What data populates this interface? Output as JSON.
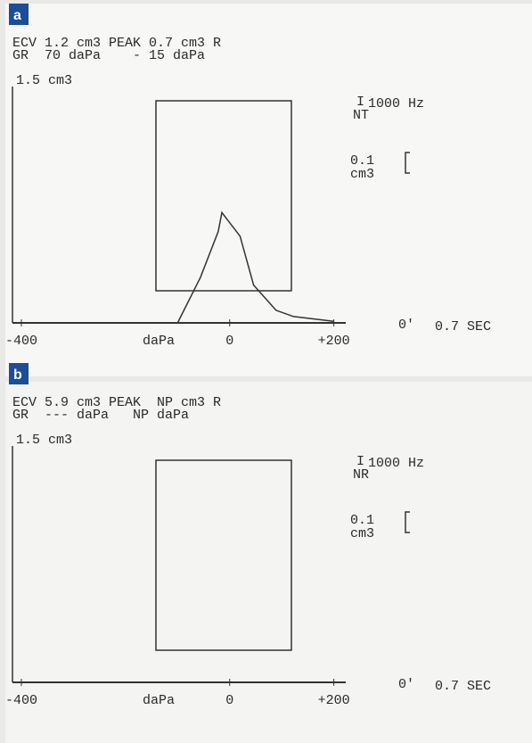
{
  "chart_data": [
    {
      "type": "line",
      "panel_label": "a",
      "header": [
        "ECV 1.2 cm3 PEAK 0.7 cm3 R",
        "GR  70 daPa    - 15 daPa"
      ],
      "y_label": "1.5 cm3",
      "x_label": "daPa",
      "probe_symbol": "I",
      "probe_mode": "NT",
      "probe_frequency": "1000 Hz",
      "scale_value": "0.1",
      "scale_unit": "cm3",
      "time_start": "0'",
      "time_end": "0.7 SEC",
      "x": [
        -100,
        -56,
        -22,
        -15,
        20,
        46,
        89,
        123,
        200
      ],
      "values": [
        0,
        0.29,
        0.58,
        0.7,
        0.55,
        0.24,
        0.08,
        0.04,
        0.01
      ],
      "color": "#333333",
      "xlim": [
        -400,
        240
      ],
      "ylim": [
        0,
        1.5
      ],
      "xticks": [
        -400,
        0,
        {
          "value": 200,
          "label": "+200"
        }
      ]
    },
    {
      "type": "line",
      "panel_label": "b",
      "header": [
        "ECV 5.9 cm3 PEAK  NP cm3 R",
        "GR  --- daPa   NP daPa"
      ],
      "y_label": "1.5 cm3",
      "x_label": "daPa",
      "probe_symbol": "I",
      "probe_mode": "NR",
      "probe_frequency": "1000 Hz",
      "scale_value": "0.1",
      "scale_unit": "cm3",
      "time_start": "0'",
      "time_end": "0.7 SEC",
      "x": [
        -400,
        -200,
        0,
        200
      ],
      "values": [
        0,
        0,
        0,
        0
      ],
      "color": "#333333",
      "xlim": [
        -400,
        240
      ],
      "ylim": [
        0,
        1.5
      ],
      "xticks": [
        -400,
        0,
        {
          "value": 200,
          "label": "+200"
        }
      ]
    }
  ]
}
